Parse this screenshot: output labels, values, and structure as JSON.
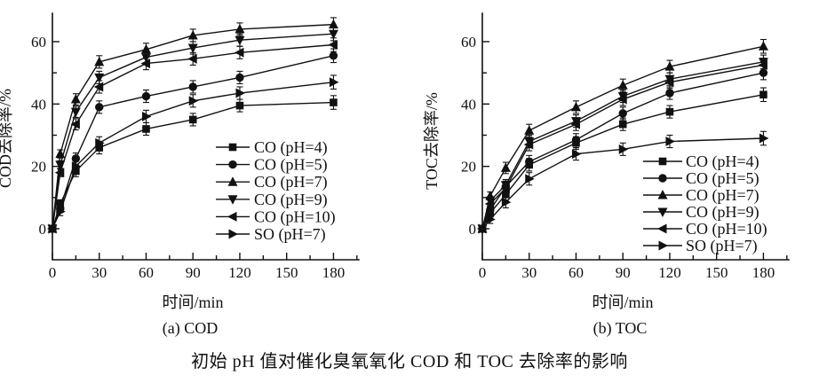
{
  "figure": {
    "caption": "初始 pH 值对催化臭氧氧化 COD 和 TOC 去除率的影响"
  },
  "chart_data": [
    {
      "type": "line",
      "subcaption": "(a) COD",
      "xlabel": "时间/min",
      "ylabel": "COD去除率/%",
      "x": [
        0,
        5,
        15,
        30,
        60,
        90,
        120,
        180
      ],
      "xticks": [
        0,
        30,
        60,
        90,
        120,
        150,
        180
      ],
      "yticks": [
        0,
        20,
        40,
        60
      ],
      "xlim": [
        0,
        195
      ],
      "ylim": [
        -10,
        69
      ],
      "grid": "off",
      "legend_position": "lower-right-inside",
      "yerr": [
        0.7,
        1.3,
        1.8,
        2,
        2,
        2,
        2,
        2.2
      ],
      "line_color": "#111111",
      "series": [
        {
          "name": "CO (pH=4)",
          "marker": "square",
          "values": [
            0,
            8,
            18.5,
            26,
            32,
            35,
            39.5,
            40.5
          ]
        },
        {
          "name": "CO (pH=5)",
          "marker": "circle",
          "values": [
            0,
            6.5,
            22.5,
            39,
            42.5,
            45.5,
            48.5,
            55.5
          ]
        },
        {
          "name": "CO (pH=7)",
          "marker": "triangle-up",
          "values": [
            0,
            24,
            41.5,
            53.5,
            57.5,
            62,
            64,
            65.5
          ]
        },
        {
          "name": "CO (pH=9)",
          "marker": "triangle-down",
          "values": [
            0,
            20.5,
            37.5,
            48.5,
            55,
            58,
            60.5,
            62.5
          ]
        },
        {
          "name": "CO (pH=10)",
          "marker": "triangle-left",
          "values": [
            0,
            18,
            33.5,
            45.5,
            53,
            54.5,
            56.5,
            59
          ]
        },
        {
          "name": "SO (pH=7)",
          "marker": "triangle-right",
          "values": [
            0,
            5.5,
            20,
            27.5,
            36,
            41,
            43.5,
            47
          ]
        }
      ]
    },
    {
      "type": "line",
      "subcaption": "(b) TOC",
      "xlabel": "时间/min",
      "ylabel": "TOC去除率/%",
      "x": [
        0,
        5,
        15,
        30,
        60,
        90,
        120,
        180
      ],
      "xticks": [
        0,
        30,
        60,
        90,
        120,
        150,
        180
      ],
      "yticks": [
        0,
        20,
        40,
        60
      ],
      "xlim": [
        0,
        195
      ],
      "ylim": [
        -10,
        69
      ],
      "grid": "off",
      "legend_position": "lower-right-inside",
      "yerr": [
        0.7,
        1.3,
        1.8,
        2,
        2,
        2,
        2,
        2.2
      ],
      "line_color": "#111111",
      "series": [
        {
          "name": "CO (pH=4)",
          "marker": "square",
          "values": [
            0,
            5,
            11,
            20.5,
            27.5,
            33.5,
            37.5,
            43
          ]
        },
        {
          "name": "CO (pH=5)",
          "marker": "circle",
          "values": [
            0,
            6,
            13.5,
            21.5,
            28.5,
            37,
            43.5,
            50
          ]
        },
        {
          "name": "CO (pH=7)",
          "marker": "triangle-up",
          "values": [
            0,
            10.5,
            19.5,
            31.5,
            39,
            46,
            52,
            58.5
          ]
        },
        {
          "name": "CO (pH=9)",
          "marker": "triangle-down",
          "values": [
            0,
            9,
            14,
            28,
            34.5,
            42.5,
            48,
            53.5
          ]
        },
        {
          "name": "CO (pH=10)",
          "marker": "triangle-left",
          "values": [
            0,
            8,
            13,
            27,
            33.5,
            41.5,
            47,
            52.5
          ]
        },
        {
          "name": "SO (pH=7)",
          "marker": "triangle-right",
          "values": [
            0,
            3,
            8.5,
            16,
            24,
            25.5,
            28,
            29
          ]
        }
      ]
    }
  ]
}
